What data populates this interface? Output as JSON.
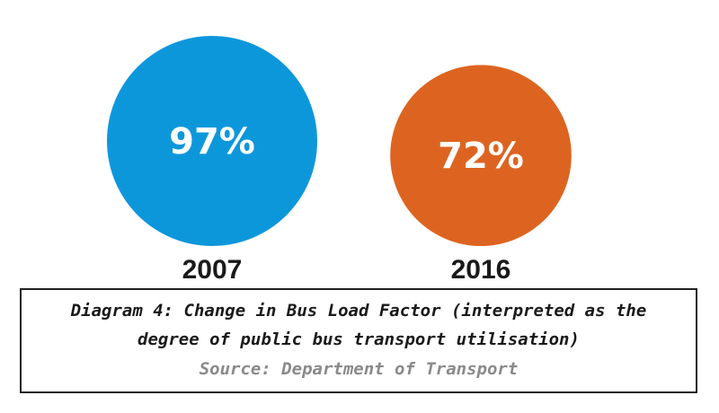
{
  "chart_data": {
    "type": "bubble",
    "categories": [
      "2007",
      "2016"
    ],
    "values": [
      97,
      72
    ],
    "value_labels": [
      "97%",
      "72%"
    ],
    "unit": "%",
    "colors": [
      "#0d97db",
      "#dd6420"
    ]
  },
  "caption": {
    "title_line_1": "Diagram 4: Change in Bus Load Factor (interpreted as the",
    "title_line_2": "degree of public bus transport utilisation)",
    "source": "Source: Department of Transport"
  }
}
